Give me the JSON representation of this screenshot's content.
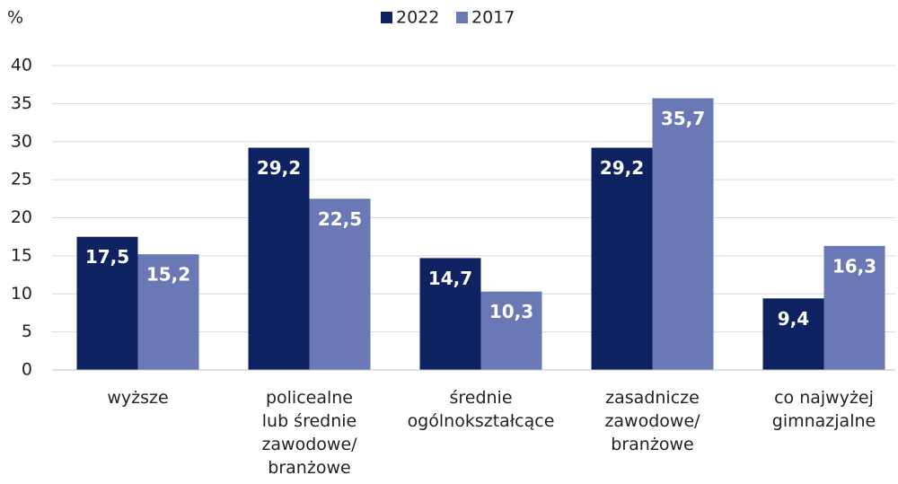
{
  "chart_data": {
    "type": "bar",
    "y_axis_label": "%",
    "categories": [
      "wyższe",
      "policealne\nlub  średnie\nzawodowe/\nbranżowe",
      "średnie\nogólnokształcące",
      "zasadnicze\nzawodowe/\nbranżowe",
      "co najwyżej\ngimnazjalne"
    ],
    "series": [
      {
        "name": "2022",
        "color": "#0e2160",
        "values": [
          17.5,
          29.2,
          14.7,
          29.2,
          9.4
        ],
        "value_labels": [
          "17,5",
          "29,2",
          "14,7",
          "29,2",
          "9,4"
        ]
      },
      {
        "name": "2017",
        "color": "#6a79b5",
        "values": [
          15.2,
          22.5,
          10.3,
          35.7,
          16.3
        ],
        "value_labels": [
          "15,2",
          "22,5",
          "10,3",
          "35,7",
          "16,3"
        ]
      }
    ],
    "ylim": [
      0,
      40
    ],
    "yticks": [
      0,
      5,
      10,
      15,
      20,
      25,
      30,
      35,
      40
    ],
    "grid": true,
    "legend": "top"
  }
}
